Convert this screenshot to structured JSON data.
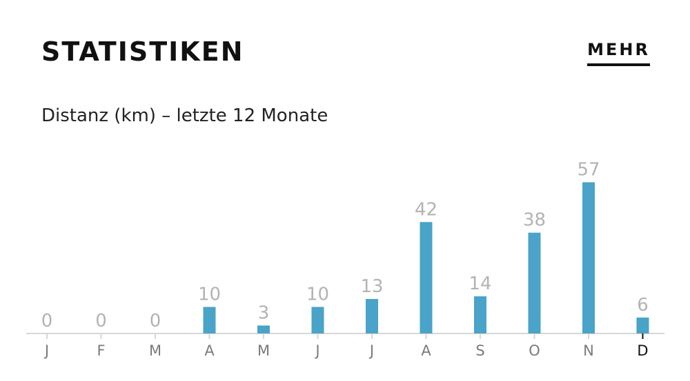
{
  "header": {
    "title": "STATISTIKEN",
    "more_label": "MEHR"
  },
  "chart_data": {
    "type": "bar",
    "title": "Distanz (km) – letzte 12 Monate",
    "categories": [
      "J",
      "F",
      "M",
      "A",
      "M",
      "J",
      "J",
      "A",
      "S",
      "O",
      "N",
      "D"
    ],
    "values": [
      0,
      0,
      0,
      10,
      3,
      10,
      13,
      42,
      14,
      38,
      57,
      6
    ],
    "current_index": 11,
    "bar_color": "#4aa3c8",
    "value_label_color": "#b3b3b3",
    "axis_label_color": "#7a7a7a",
    "current_label_color": "#111111",
    "grid": false
  }
}
